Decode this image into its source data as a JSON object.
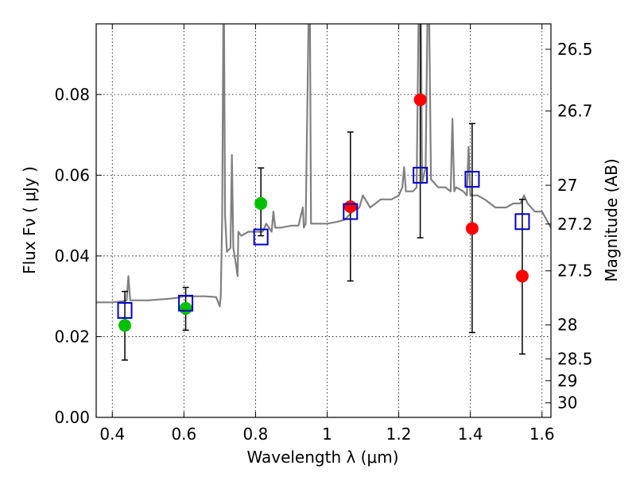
{
  "chart_data": {
    "type": "scatter",
    "xlabel": "Wavelength  λ (μm)",
    "ylabel": "Flux  Fν  ( μJy )",
    "y2label": "Magnitude (AB)",
    "xlim": [
      0.355,
      1.625
    ],
    "ylim": [
      0.0,
      0.0975
    ],
    "x_ticks": [
      0.4,
      0.6,
      0.8,
      1.0,
      1.2,
      1.4,
      1.6
    ],
    "x_tick_labels": [
      "0.4",
      "0.6",
      "0.8",
      "1",
      "1.2",
      "1.4",
      "1.6"
    ],
    "y_ticks": [
      0.0,
      0.02,
      0.04,
      0.06,
      0.08
    ],
    "y_tick_labels": [
      "0.00",
      "0.02",
      "0.04",
      "0.06",
      "0.08"
    ],
    "y2_ticks": [
      {
        "label": "26.5",
        "flux": 0.0912
      },
      {
        "label": "26.7",
        "flux": 0.0759
      },
      {
        "label": "27",
        "flux": 0.0575
      },
      {
        "label": "27.2",
        "flux": 0.0479
      },
      {
        "label": "27.5",
        "flux": 0.0363
      },
      {
        "label": "28",
        "flux": 0.0229
      },
      {
        "label": "28.5",
        "flux": 0.0145
      },
      {
        "label": "29",
        "flux": 0.0091
      },
      {
        "label": "30",
        "flux": 0.0036
      }
    ],
    "grid": true,
    "colors": {
      "spectrum": "#808080",
      "detection": "#00c000",
      "upper": "#ff0000",
      "model": "#0000cc",
      "errorbar": "#000000"
    },
    "spectrum": {
      "x": [
        0.355,
        0.38,
        0.4,
        0.42,
        0.43,
        0.44,
        0.445,
        0.45,
        0.47,
        0.5,
        0.53,
        0.56,
        0.58,
        0.6,
        0.63,
        0.66,
        0.69,
        0.7,
        0.703,
        0.707,
        0.71,
        0.712,
        0.715,
        0.72,
        0.73,
        0.734,
        0.738,
        0.745,
        0.75,
        0.752,
        0.76,
        0.78,
        0.8,
        0.82,
        0.83,
        0.845,
        0.85,
        0.855,
        0.87,
        0.9,
        0.92,
        0.932,
        0.935,
        0.94,
        0.948,
        0.952,
        0.955,
        0.96,
        1.0,
        1.03,
        1.05,
        1.07,
        1.09,
        1.1,
        1.12,
        1.15,
        1.18,
        1.2,
        1.21,
        1.215,
        1.22,
        1.24,
        1.25,
        1.255,
        1.262,
        1.265,
        1.27,
        1.275,
        1.28,
        1.285,
        1.29,
        1.31,
        1.33,
        1.345,
        1.35,
        1.355,
        1.36,
        1.38,
        1.39,
        1.395,
        1.4,
        1.42,
        1.44,
        1.47,
        1.5,
        1.52,
        1.54,
        1.55,
        1.56,
        1.58,
        1.6,
        1.625
      ],
      "y": [
        0.0285,
        0.0285,
        0.0285,
        0.0287,
        0.0288,
        0.029,
        0.035,
        0.029,
        0.029,
        0.029,
        0.0292,
        0.0294,
        0.0296,
        0.03,
        0.03,
        0.03,
        0.0298,
        0.0275,
        0.03,
        0.05,
        0.098,
        0.098,
        0.05,
        0.041,
        0.042,
        0.065,
        0.042,
        0.038,
        0.035,
        0.046,
        0.045,
        0.046,
        0.046,
        0.046,
        0.048,
        0.046,
        0.051,
        0.047,
        0.047,
        0.0475,
        0.0475,
        0.052,
        0.047,
        0.048,
        0.098,
        0.098,
        0.048,
        0.048,
        0.048,
        0.0485,
        0.049,
        0.051,
        0.052,
        0.055,
        0.052,
        0.054,
        0.054,
        0.055,
        0.057,
        0.062,
        0.056,
        0.056,
        0.057,
        0.098,
        0.098,
        0.058,
        0.06,
        0.062,
        0.098,
        0.098,
        0.059,
        0.057,
        0.057,
        0.056,
        0.074,
        0.056,
        0.057,
        0.056,
        0.055,
        0.067,
        0.055,
        0.055,
        0.054,
        0.052,
        0.052,
        0.053,
        0.053,
        0.055,
        0.053,
        0.051,
        0.051,
        0.047
      ]
    },
    "model_points": {
      "x": [
        0.435,
        0.605,
        0.815,
        1.065,
        1.26,
        1.405,
        1.545
      ],
      "y": [
        0.0265,
        0.0283,
        0.0447,
        0.051,
        0.06,
        0.059,
        0.0485
      ]
    },
    "green_points": {
      "x": [
        0.435,
        0.605,
        0.815
      ],
      "y": [
        0.0228,
        0.027,
        0.053
      ]
    },
    "red_points": {
      "x": [
        1.065,
        1.26,
        1.405,
        1.545
      ],
      "y": [
        0.0522,
        0.0787,
        0.0468,
        0.035
      ]
    },
    "error_bars": [
      {
        "x": 0.435,
        "low": 0.0142,
        "high": 0.0312
      },
      {
        "x": 0.605,
        "low": 0.0216,
        "high": 0.0322
      },
      {
        "x": 0.815,
        "low": 0.045,
        "high": 0.0618
      },
      {
        "x": 1.065,
        "low": 0.0338,
        "high": 0.0707
      },
      {
        "x": 1.26,
        "low": 0.0445,
        "high": 0.1
      },
      {
        "x": 1.405,
        "low": 0.021,
        "high": 0.0728
      },
      {
        "x": 1.545,
        "low": 0.0157,
        "high": 0.054
      }
    ]
  }
}
